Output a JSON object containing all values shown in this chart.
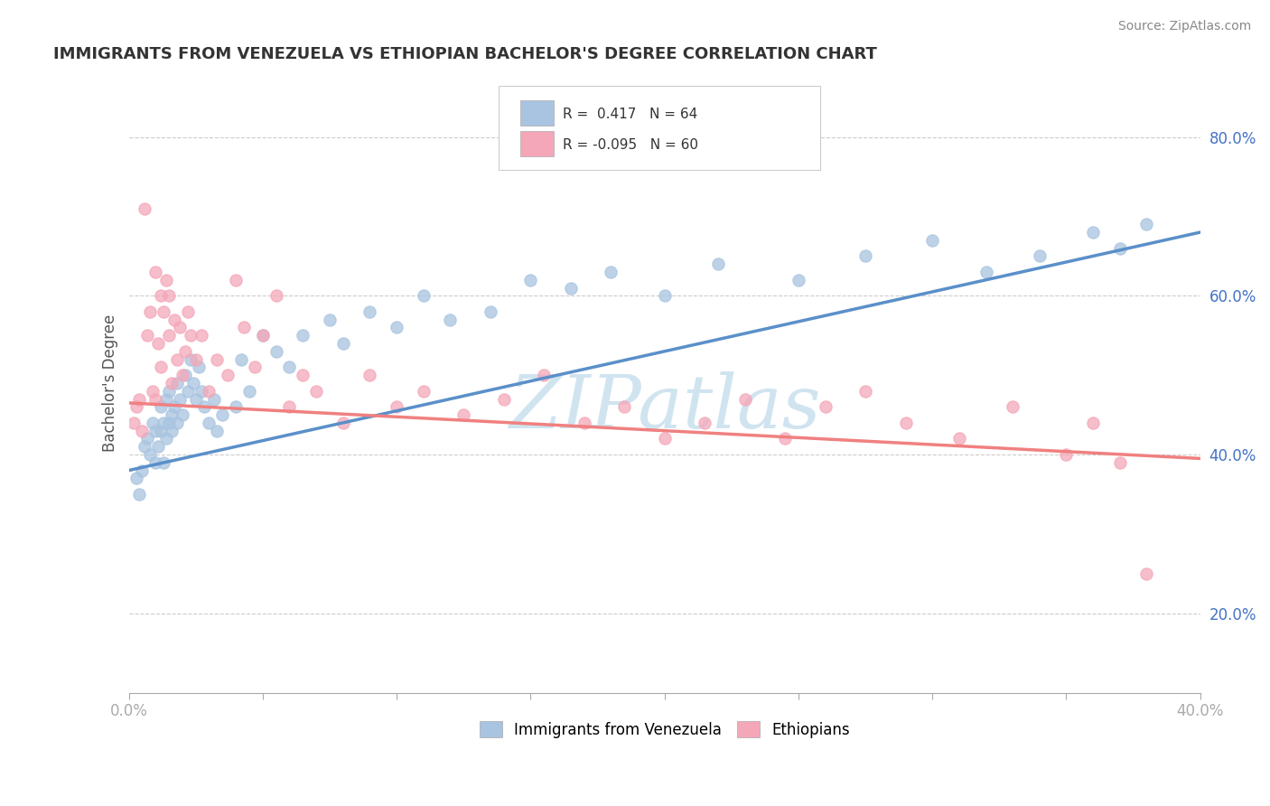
{
  "title": "IMMIGRANTS FROM VENEZUELA VS ETHIOPIAN BACHELOR'S DEGREE CORRELATION CHART",
  "source": "Source: ZipAtlas.com",
  "ylabel": "Bachelor's Degree",
  "xlim": [
    0.0,
    0.4
  ],
  "ylim": [
    0.1,
    0.88
  ],
  "xtick_positions": [
    0.0,
    0.05,
    0.1,
    0.15,
    0.2,
    0.25,
    0.3,
    0.35,
    0.4
  ],
  "xtick_labels": [
    "0.0%",
    "",
    "",
    "",
    "",
    "",
    "",
    "",
    "40.0%"
  ],
  "ytick_positions": [
    0.2,
    0.4,
    0.6,
    0.8
  ],
  "ytick_labels": [
    "20.0%",
    "40.0%",
    "60.0%",
    "80.0%"
  ],
  "blue_R": 0.417,
  "blue_N": 64,
  "pink_R": -0.095,
  "pink_N": 60,
  "blue_color": "#A8C4E0",
  "pink_color": "#F4A7B9",
  "blue_line_color": "#5B8FC9",
  "pink_line_color": "#F08080",
  "watermark": "ZIPatlas",
  "watermark_color": "#D0E4F0",
  "legend_label_blue": "Immigrants from Venezuela",
  "legend_label_pink": "Ethiopians",
  "title_color": "#333333",
  "axis_color": "#4472C4",
  "grid_color": "#CCCCCC",
  "background_color": "#FFFFFF",
  "blue_scatter_x": [
    0.003,
    0.004,
    0.005,
    0.006,
    0.007,
    0.008,
    0.009,
    0.01,
    0.01,
    0.011,
    0.012,
    0.012,
    0.013,
    0.013,
    0.014,
    0.014,
    0.015,
    0.015,
    0.016,
    0.016,
    0.017,
    0.018,
    0.018,
    0.019,
    0.02,
    0.021,
    0.022,
    0.023,
    0.024,
    0.025,
    0.026,
    0.027,
    0.028,
    0.03,
    0.032,
    0.033,
    0.035,
    0.04,
    0.042,
    0.045,
    0.05,
    0.055,
    0.06,
    0.065,
    0.075,
    0.08,
    0.09,
    0.1,
    0.11,
    0.12,
    0.135,
    0.15,
    0.165,
    0.18,
    0.2,
    0.22,
    0.25,
    0.275,
    0.3,
    0.32,
    0.34,
    0.36,
    0.37,
    0.38
  ],
  "blue_scatter_y": [
    0.37,
    0.35,
    0.38,
    0.41,
    0.42,
    0.4,
    0.44,
    0.39,
    0.43,
    0.41,
    0.43,
    0.46,
    0.39,
    0.44,
    0.42,
    0.47,
    0.44,
    0.48,
    0.45,
    0.43,
    0.46,
    0.44,
    0.49,
    0.47,
    0.45,
    0.5,
    0.48,
    0.52,
    0.49,
    0.47,
    0.51,
    0.48,
    0.46,
    0.44,
    0.47,
    0.43,
    0.45,
    0.46,
    0.52,
    0.48,
    0.55,
    0.53,
    0.51,
    0.55,
    0.57,
    0.54,
    0.58,
    0.56,
    0.6,
    0.57,
    0.58,
    0.62,
    0.61,
    0.63,
    0.6,
    0.64,
    0.62,
    0.65,
    0.67,
    0.63,
    0.65,
    0.68,
    0.66,
    0.69
  ],
  "pink_scatter_x": [
    0.002,
    0.003,
    0.004,
    0.005,
    0.006,
    0.007,
    0.008,
    0.009,
    0.01,
    0.01,
    0.011,
    0.012,
    0.012,
    0.013,
    0.014,
    0.015,
    0.015,
    0.016,
    0.017,
    0.018,
    0.019,
    0.02,
    0.021,
    0.022,
    0.023,
    0.025,
    0.027,
    0.03,
    0.033,
    0.037,
    0.04,
    0.043,
    0.047,
    0.05,
    0.055,
    0.06,
    0.065,
    0.07,
    0.08,
    0.09,
    0.1,
    0.11,
    0.125,
    0.14,
    0.155,
    0.17,
    0.185,
    0.2,
    0.215,
    0.23,
    0.245,
    0.26,
    0.275,
    0.29,
    0.31,
    0.33,
    0.35,
    0.36,
    0.37,
    0.38
  ],
  "pink_scatter_y": [
    0.44,
    0.46,
    0.47,
    0.43,
    0.71,
    0.55,
    0.58,
    0.48,
    0.63,
    0.47,
    0.54,
    0.6,
    0.51,
    0.58,
    0.62,
    0.55,
    0.6,
    0.49,
    0.57,
    0.52,
    0.56,
    0.5,
    0.53,
    0.58,
    0.55,
    0.52,
    0.55,
    0.48,
    0.52,
    0.5,
    0.62,
    0.56,
    0.51,
    0.55,
    0.6,
    0.46,
    0.5,
    0.48,
    0.44,
    0.5,
    0.46,
    0.48,
    0.45,
    0.47,
    0.5,
    0.44,
    0.46,
    0.42,
    0.44,
    0.47,
    0.42,
    0.46,
    0.48,
    0.44,
    0.42,
    0.46,
    0.4,
    0.44,
    0.39,
    0.25
  ],
  "blue_line_x0": 0.0,
  "blue_line_y0": 0.38,
  "blue_line_x1": 0.4,
  "blue_line_y1": 0.68,
  "pink_line_x0": 0.0,
  "pink_line_y0": 0.465,
  "pink_line_x1": 0.4,
  "pink_line_y1": 0.395
}
